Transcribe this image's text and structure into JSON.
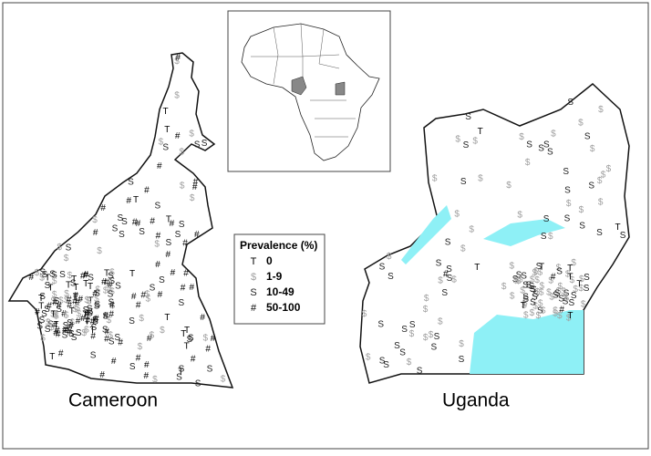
{
  "legend": {
    "title": "Prevalence (%)",
    "items": [
      {
        "symbol": "T",
        "label": "0",
        "color": "#000000"
      },
      {
        "symbol": "$",
        "label": "1-9",
        "color": "#a0a0a0"
      },
      {
        "symbol": "S",
        "label": "10-49",
        "color": "#222222"
      },
      {
        "symbol": "#",
        "label": "50-100",
        "color": "#000000"
      }
    ]
  },
  "maps": [
    {
      "label": "Cameroon"
    },
    {
      "label": "Uganda"
    }
  ]
}
